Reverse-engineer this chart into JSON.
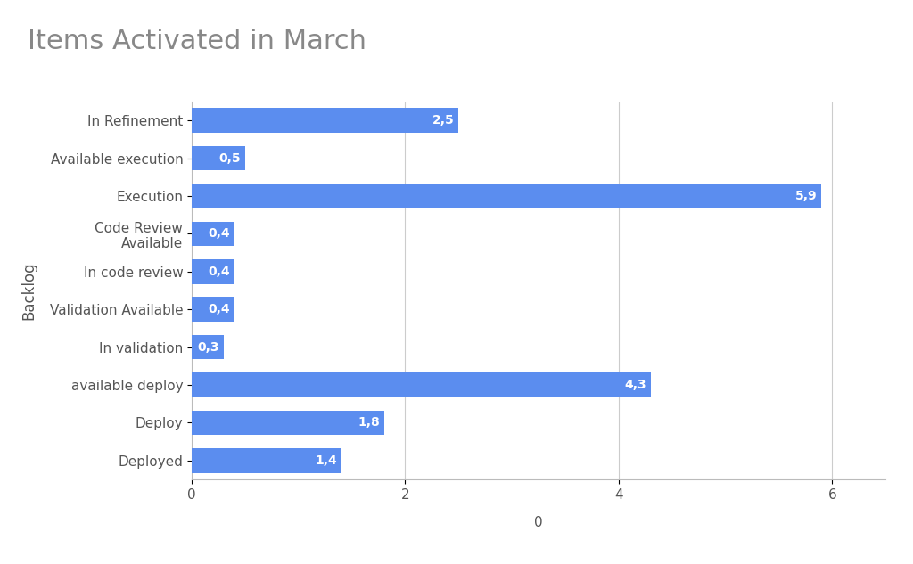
{
  "title": "Items Activated in March",
  "categories": [
    "In Refinement",
    "Available execution",
    "Execution",
    "Code Review\nAvailable",
    "In code review",
    "Validation Available",
    "In validation",
    "available deploy",
    "Deploy",
    "Deployed"
  ],
  "values": [
    2.5,
    0.5,
    5.9,
    0.4,
    0.4,
    0.4,
    0.3,
    4.3,
    1.8,
    1.4
  ],
  "labels": [
    "2,5",
    "0,5",
    "5,9",
    "0,4",
    "0,4",
    "0,4",
    "0,3",
    "4,3",
    "1,8",
    "1,4"
  ],
  "bar_color": "#5b8def",
  "background_color": "#ffffff",
  "title_color": "#888888",
  "ylabel": "Backlog",
  "xlabel": "0",
  "xlim": [
    0,
    6.5
  ],
  "xticks": [
    0,
    2,
    4,
    6
  ],
  "title_fontsize": 22,
  "label_fontsize": 11,
  "axis_label_fontsize": 12,
  "bar_label_fontsize": 10
}
